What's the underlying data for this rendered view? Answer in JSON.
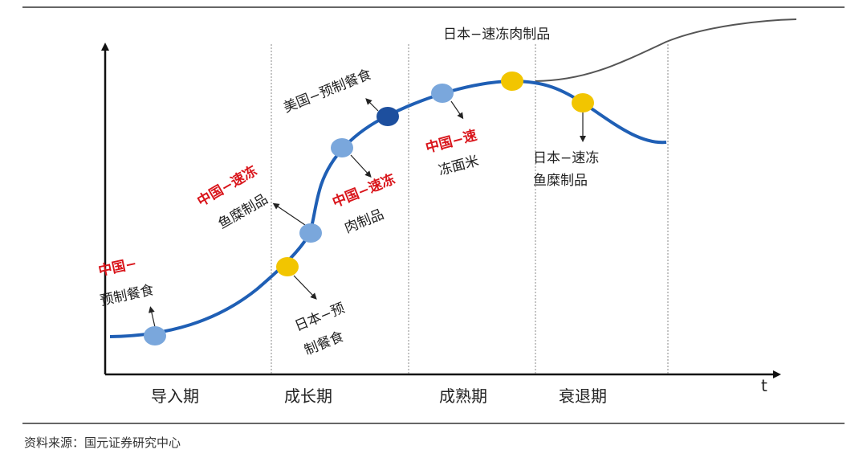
{
  "labels": {
    "japan_frozen_meat": "日本−速冻肉制品",
    "us_prepared": "美国−预制餐食",
    "cn_frozen_fish_red": "中国−速冻",
    "cn_frozen_fish_black": "鱼糜制品",
    "cn_prepared_red": "中国−",
    "cn_prepared_black": "预制餐食",
    "cn_frozen_meat_red": "中国−速冻",
    "cn_frozen_meat_black": "肉制品",
    "cn_frozen_noodle_red": "中国−速",
    "cn_frozen_noodle_black": "冻面米",
    "jp_prepared_line1": "日本−预",
    "jp_prepared_line2": "制餐食",
    "jp_frozen_fish_line1": "日本−速冻",
    "jp_frozen_fish_line2": "鱼糜制品"
  },
  "phases": {
    "intro": "导入期",
    "growth": "成长期",
    "mature": "成熟期",
    "decline": "衰退期"
  },
  "axis": {
    "x_label": "t"
  },
  "source": "资料来源：国元证券研究中心",
  "colors": {
    "curve": "#1f5fb5",
    "curve_upper": "#555555",
    "dot_light": "#7aa7dc",
    "dot_dark": "#1d4f9e",
    "dot_yellow": "#f2c500",
    "red_text": "#d9151b"
  }
}
